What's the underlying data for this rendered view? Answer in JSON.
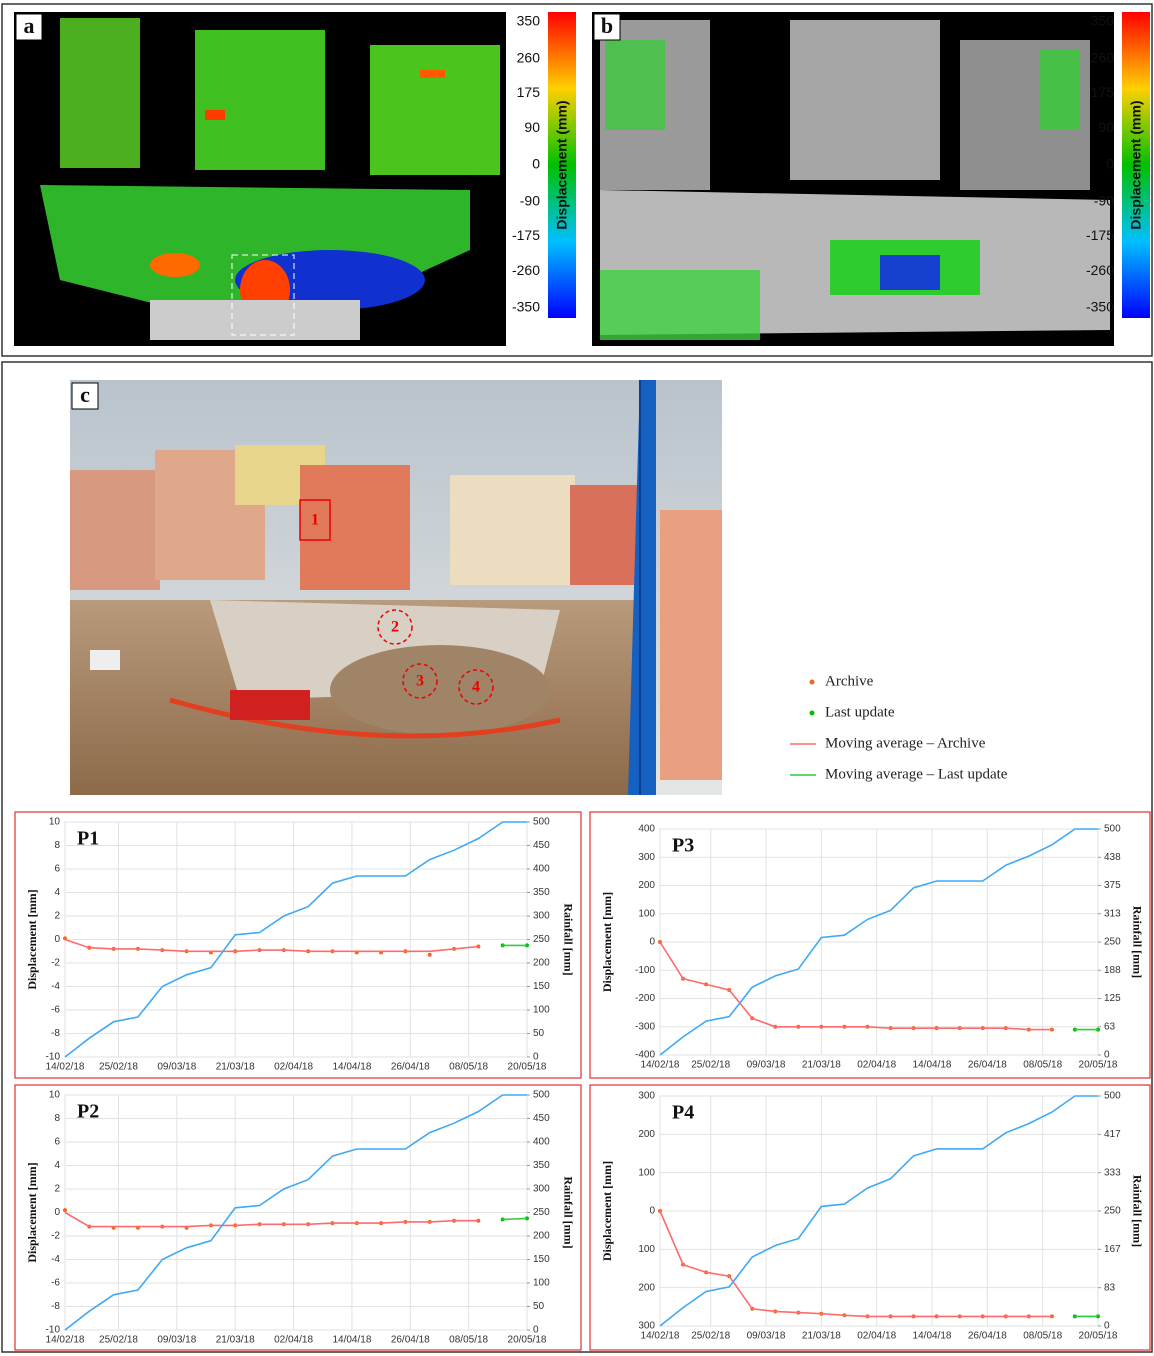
{
  "panels": {
    "a": {
      "label": "a",
      "colorbar_label": "Displacement (mm)",
      "colorbar_ticks": [
        350,
        260,
        175,
        90,
        0,
        -90,
        -175,
        -260,
        -350
      ]
    },
    "b": {
      "label": "b",
      "colorbar_label": "Displacement (mm)",
      "colorbar_ticks": [
        350,
        260,
        175,
        90,
        0,
        -90,
        -175,
        -260,
        -350
      ]
    }
  },
  "photo": {
    "label": "c",
    "markers": [
      "1",
      "2",
      "3",
      "4"
    ]
  },
  "legend": [
    {
      "name": "Archive",
      "color": "#f26522",
      "kind": "marker"
    },
    {
      "name": "Last update",
      "color": "#00c000",
      "kind": "marker"
    },
    {
      "name": "Moving average – Archive",
      "color": "#ff6b6b",
      "kind": "line"
    },
    {
      "name": "Moving average – Last update",
      "color": "#2ecc40",
      "kind": "line"
    }
  ],
  "chart_data": [
    {
      "type": "line",
      "title": "P1",
      "ylabel": "Displacement [mm]",
      "y2label": "Rainfall [mm]",
      "grid": true,
      "x": [
        "14/02/18",
        "19/02/18",
        "24/02/18",
        "01/03/18",
        "06/03/18",
        "11/03/18",
        "16/03/18",
        "21/03/18",
        "26/03/18",
        "31/03/18",
        "05/04/18",
        "10/04/18",
        "15/04/18",
        "20/04/18",
        "25/04/18",
        "30/04/18",
        "05/05/18",
        "10/05/18",
        "15/05/18",
        "20/05/18"
      ],
      "xlim": [
        "14/02/18",
        "20/05/18"
      ],
      "xticks": [
        "14/02/18",
        "25/02/18",
        "09/03/18",
        "21/03/18",
        "02/04/18",
        "14/04/18",
        "26/04/18",
        "08/05/18",
        "20/05/18"
      ],
      "ylim": [
        -10,
        10
      ],
      "yticks": [
        -10,
        -8,
        -6,
        -4,
        -2,
        0,
        2,
        4,
        6,
        8,
        10
      ],
      "y2lim": [
        0,
        500
      ],
      "y2ticks": [
        0,
        50,
        100,
        150,
        200,
        250,
        300,
        350,
        400,
        450,
        500
      ],
      "series": [
        {
          "style": "points",
          "color": "#f26522",
          "values": [
            0.1,
            -0.7,
            -0.8,
            -0.8,
            -0.9,
            -1.0,
            -1.1,
            -1.0,
            -0.9,
            -0.9,
            -1.0,
            -1.0,
            -1.1,
            -1.1,
            -1.0,
            -1.3,
            -0.8,
            -0.6,
            null,
            null
          ]
        },
        {
          "style": "line",
          "color": "#ff6b6b",
          "values": [
            0,
            -0.7,
            -0.8,
            -0.8,
            -0.9,
            -1.0,
            -1.0,
            -1.0,
            -0.9,
            -0.9,
            -1.0,
            -1.0,
            -1.0,
            -1.0,
            -1.0,
            -1.0,
            -0.8,
            -0.6,
            null,
            null
          ]
        },
        {
          "style": "points",
          "color": "#00c000",
          "values": [
            null,
            null,
            null,
            null,
            null,
            null,
            null,
            null,
            null,
            null,
            null,
            null,
            null,
            null,
            null,
            null,
            null,
            null,
            -0.5,
            -0.5
          ]
        },
        {
          "style": "line",
          "color": "#2ecc40",
          "values": [
            null,
            null,
            null,
            null,
            null,
            null,
            null,
            null,
            null,
            null,
            null,
            null,
            null,
            null,
            null,
            null,
            null,
            null,
            -0.5,
            -0.5
          ]
        },
        {
          "style": "line",
          "color": "#3fa9f5",
          "axis": "y2",
          "values": [
            0,
            40,
            75,
            85,
            150,
            175,
            190,
            260,
            265,
            300,
            320,
            370,
            385,
            385,
            385,
            420,
            440,
            465,
            500,
            500
          ]
        }
      ]
    },
    {
      "type": "line",
      "title": "P2",
      "ylabel": "Displacement [mm]",
      "y2label": "Rainfall [mm]",
      "grid": true,
      "x": [
        "14/02/18",
        "19/02/18",
        "24/02/18",
        "01/03/18",
        "06/03/18",
        "11/03/18",
        "16/03/18",
        "21/03/18",
        "26/03/18",
        "31/03/18",
        "05/04/18",
        "10/04/18",
        "15/04/18",
        "20/04/18",
        "25/04/18",
        "30/04/18",
        "05/05/18",
        "10/05/18",
        "15/05/18",
        "20/05/18"
      ],
      "xlim": [
        "14/02/18",
        "20/05/18"
      ],
      "xticks": [
        "14/02/18",
        "25/02/18",
        "09/03/18",
        "21/03/18",
        "02/04/18",
        "14/04/18",
        "26/04/18",
        "08/05/18",
        "20/05/18"
      ],
      "ylim": [
        -10,
        10
      ],
      "yticks": [
        -10,
        -8,
        -6,
        -4,
        -2,
        0,
        2,
        4,
        6,
        8,
        10
      ],
      "y2lim": [
        0,
        500
      ],
      "y2ticks": [
        0,
        50,
        100,
        150,
        200,
        250,
        300,
        350,
        400,
        450,
        500
      ],
      "series": [
        {
          "style": "points",
          "color": "#f26522",
          "values": [
            0.2,
            -1.2,
            -1.3,
            -1.3,
            -1.2,
            -1.3,
            -1.1,
            -1.1,
            -1.0,
            -1.0,
            -1.0,
            -0.9,
            -0.9,
            -0.9,
            -0.8,
            -0.8,
            -0.7,
            -0.7,
            null,
            null
          ]
        },
        {
          "style": "line",
          "color": "#ff6b6b",
          "values": [
            0,
            -1.2,
            -1.2,
            -1.2,
            -1.2,
            -1.2,
            -1.1,
            -1.1,
            -1.0,
            -1.0,
            -1.0,
            -0.9,
            -0.9,
            -0.9,
            -0.8,
            -0.8,
            -0.7,
            -0.7,
            null,
            null
          ]
        },
        {
          "style": "points",
          "color": "#00c000",
          "values": [
            null,
            null,
            null,
            null,
            null,
            null,
            null,
            null,
            null,
            null,
            null,
            null,
            null,
            null,
            null,
            null,
            null,
            null,
            -0.6,
            -0.5
          ]
        },
        {
          "style": "line",
          "color": "#2ecc40",
          "values": [
            null,
            null,
            null,
            null,
            null,
            null,
            null,
            null,
            null,
            null,
            null,
            null,
            null,
            null,
            null,
            null,
            null,
            null,
            -0.6,
            -0.5
          ]
        },
        {
          "style": "line",
          "color": "#3fa9f5",
          "axis": "y2",
          "values": [
            0,
            40,
            75,
            85,
            150,
            175,
            190,
            260,
            265,
            300,
            320,
            370,
            385,
            385,
            385,
            420,
            440,
            465,
            500,
            500
          ]
        }
      ]
    },
    {
      "type": "line",
      "title": "P3",
      "ylabel": "Displacement [mm]",
      "y2label": "Rainfall [mm]",
      "grid": true,
      "x": [
        "14/02/18",
        "19/02/18",
        "24/02/18",
        "01/03/18",
        "06/03/18",
        "11/03/18",
        "16/03/18",
        "21/03/18",
        "26/03/18",
        "31/03/18",
        "05/04/18",
        "10/04/18",
        "15/04/18",
        "20/04/18",
        "25/04/18",
        "30/04/18",
        "05/05/18",
        "10/05/18",
        "15/05/18",
        "20/05/18"
      ],
      "xlim": [
        "14/02/18",
        "20/05/18"
      ],
      "xticks": [
        "14/02/18",
        "25/02/18",
        "09/03/18",
        "21/03/18",
        "02/04/18",
        "14/04/18",
        "26/04/18",
        "08/05/18",
        "20/05/18"
      ],
      "ylim": [
        -400,
        400
      ],
      "yticks": [
        -400,
        -300,
        -200,
        -100,
        0,
        100,
        200,
        300,
        400
      ],
      "y2lim": [
        0,
        500
      ],
      "y2ticks": [
        0,
        {
          "value": 62.5,
          "label": "63"
        },
        125,
        {
          "value": 187.5,
          "label": "188"
        },
        250,
        {
          "value": 312.5,
          "label": "313"
        },
        375,
        {
          "value": 437.5,
          "label": "438"
        },
        500
      ],
      "series": [
        {
          "style": "points",
          "color": "#f26522",
          "values": [
            0,
            -130,
            -150,
            -170,
            -270,
            -300,
            -300,
            -300,
            -300,
            -300,
            -305,
            -305,
            -305,
            -305,
            -305,
            -305,
            -310,
            -310,
            null,
            null
          ]
        },
        {
          "style": "line",
          "color": "#ff6b6b",
          "values": [
            0,
            -130,
            -150,
            -170,
            -270,
            -300,
            -300,
            -300,
            -300,
            -300,
            -305,
            -305,
            -305,
            -305,
            -305,
            -305,
            -310,
            -310,
            null,
            null
          ]
        },
        {
          "style": "points",
          "color": "#00c000",
          "values": [
            null,
            null,
            null,
            null,
            null,
            null,
            null,
            null,
            null,
            null,
            null,
            null,
            null,
            null,
            null,
            null,
            null,
            null,
            -310,
            -310
          ]
        },
        {
          "style": "line",
          "color": "#2ecc40",
          "values": [
            null,
            null,
            null,
            null,
            null,
            null,
            null,
            null,
            null,
            null,
            null,
            null,
            null,
            null,
            null,
            null,
            null,
            null,
            -310,
            -310
          ]
        },
        {
          "style": "line",
          "color": "#3fa9f5",
          "axis": "y2",
          "values": [
            0,
            40,
            75,
            85,
            150,
            175,
            190,
            260,
            265,
            300,
            320,
            370,
            385,
            385,
            385,
            420,
            440,
            465,
            500,
            500
          ]
        }
      ]
    },
    {
      "type": "line",
      "title": "P4",
      "ylabel": "Displacement [mm]",
      "y2label": "Rainfall [mm]",
      "grid": true,
      "x": [
        "14/02/18",
        "19/02/18",
        "24/02/18",
        "01/03/18",
        "06/03/18",
        "11/03/18",
        "16/03/18",
        "21/03/18",
        "26/03/18",
        "31/03/18",
        "05/04/18",
        "10/04/18",
        "15/04/18",
        "20/04/18",
        "25/04/18",
        "30/04/18",
        "05/05/18",
        "10/05/18",
        "15/05/18",
        "20/05/18"
      ],
      "xlim": [
        "14/02/18",
        "20/05/18"
      ],
      "xticks": [
        "14/02/18",
        "25/02/18",
        "09/03/18",
        "21/03/18",
        "02/04/18",
        "14/04/18",
        "26/04/18",
        "08/05/18",
        "20/05/18"
      ],
      "ylim": [
        -300,
        300
      ],
      "yticks": [
        {
          "value": -300,
          "label": "300"
        },
        {
          "value": -200,
          "label": "200"
        },
        {
          "value": -100,
          "label": "100"
        },
        0,
        100,
        200,
        300
      ],
      "y2lim": [
        0,
        500
      ],
      "y2ticks": [
        0,
        {
          "value": 83.33,
          "label": "83"
        },
        {
          "value": 166.67,
          "label": "167"
        },
        250,
        {
          "value": 333.33,
          "label": "333"
        },
        {
          "value": 416.67,
          "label": "417"
        },
        500
      ],
      "series": [
        {
          "style": "points",
          "color": "#f26522",
          "values": [
            0,
            -140,
            -160,
            -170,
            -255,
            -262,
            -265,
            -268,
            -272,
            -275,
            -275,
            -275,
            -275,
            -275,
            -275,
            -275,
            -275,
            -275,
            null,
            null
          ]
        },
        {
          "style": "line",
          "color": "#ff6b6b",
          "values": [
            0,
            -140,
            -160,
            -170,
            -255,
            -262,
            -265,
            -268,
            -272,
            -275,
            -275,
            -275,
            -275,
            -275,
            -275,
            -275,
            -275,
            -275,
            null,
            null
          ]
        },
        {
          "style": "points",
          "color": "#00c000",
          "values": [
            null,
            null,
            null,
            null,
            null,
            null,
            null,
            null,
            null,
            null,
            null,
            null,
            null,
            null,
            null,
            null,
            null,
            null,
            -275,
            -275
          ]
        },
        {
          "style": "line",
          "color": "#2ecc40",
          "values": [
            null,
            null,
            null,
            null,
            null,
            null,
            null,
            null,
            null,
            null,
            null,
            null,
            null,
            null,
            null,
            null,
            null,
            null,
            -275,
            -275
          ]
        },
        {
          "style": "line",
          "color": "#3fa9f5",
          "axis": "y2",
          "values": [
            0,
            40,
            75,
            85,
            150,
            175,
            190,
            260,
            265,
            300,
            320,
            370,
            385,
            385,
            385,
            420,
            440,
            465,
            500,
            500
          ]
        }
      ]
    }
  ]
}
